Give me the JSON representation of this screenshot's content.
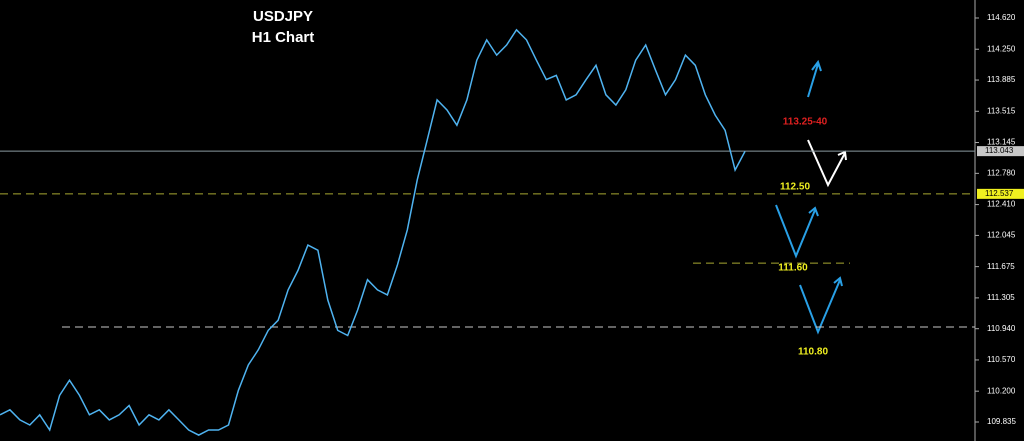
{
  "chart_data": {
    "type": "line",
    "title": "USDJPY",
    "subtitle": "H1 Chart",
    "series": [
      {
        "color": "#4fb3f0",
        "values": [
          109.92,
          109.98,
          109.86,
          109.8,
          109.92,
          109.74,
          110.15,
          110.33,
          110.15,
          109.92,
          109.98,
          109.86,
          109.92,
          110.03,
          109.8,
          109.92,
          109.86,
          109.98,
          109.86,
          109.74,
          109.68,
          109.74,
          109.74,
          109.8,
          110.21,
          110.51,
          110.69,
          110.92,
          111.04,
          111.4,
          111.63,
          111.93,
          111.87,
          111.28,
          110.92,
          110.86,
          111.16,
          111.52,
          111.4,
          111.34,
          111.69,
          112.11,
          112.7,
          113.17,
          113.65,
          113.53,
          113.35,
          113.65,
          114.12,
          114.36,
          114.18,
          114.3,
          114.48,
          114.36,
          114.12,
          113.89,
          113.94,
          113.65,
          113.71,
          113.89,
          114.06,
          113.71,
          113.59,
          113.77,
          114.12,
          114.3,
          114.0,
          113.71,
          113.89,
          114.18,
          114.06,
          113.71,
          113.47,
          113.29,
          112.82,
          113.04
        ]
      }
    ],
    "ylim": [
      109.61,
      114.833
    ],
    "yticks": [
      {
        "value": 114.62,
        "label": "114.620"
      },
      {
        "value": 114.25,
        "label": "114.250"
      },
      113.885,
      113.515,
      113.145,
      {
        "value": 112.78,
        "label": "112.780"
      },
      {
        "value": 112.41,
        "label": "112.410"
      },
      112.045,
      111.675,
      111.305,
      {
        "value": 110.94,
        "label": "110.940"
      },
      {
        "value": 110.57,
        "label": "110.570"
      },
      {
        "value": 110.2,
        "label": "110.200"
      },
      109.835
    ],
    "price_lines": [
      {
        "value": 113.043,
        "color": "#8a9aa0",
        "dashed": false,
        "box": true,
        "box_color": "#c8c8c8"
      },
      {
        "value": 112.537,
        "color": "#a8a832",
        "dashed": true,
        "box": true,
        "box_color": "#f0f020"
      }
    ],
    "levels": [
      {
        "value": 111.717,
        "color": "#a8a832"
      },
      {
        "value": 110.96,
        "color": "#c8c8c8"
      }
    ],
    "annotations": [
      "113.25-40",
      "112.50",
      "111.60",
      "110.80"
    ]
  }
}
